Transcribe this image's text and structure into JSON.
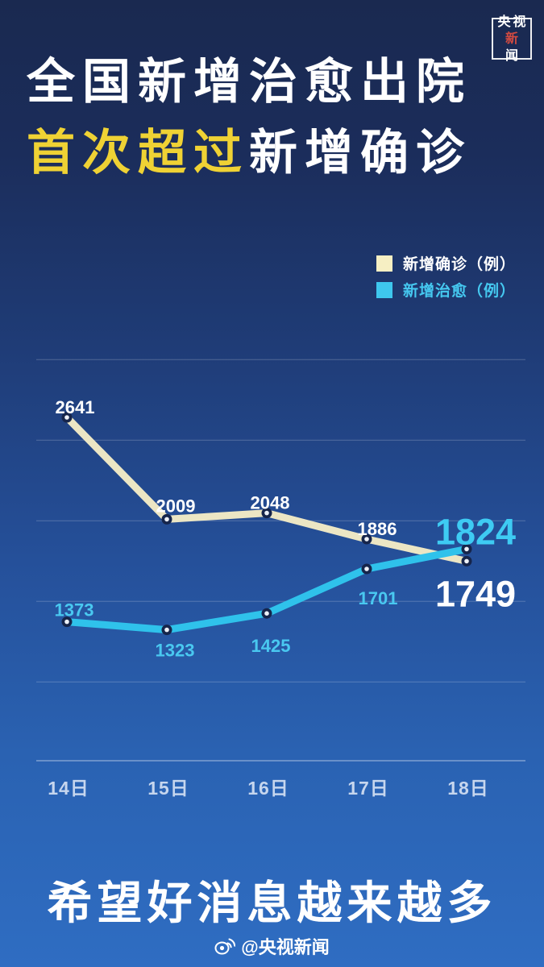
{
  "brand": {
    "logo_row1": "央视",
    "logo_row2_red": "新",
    "logo_row2_rest": "闻",
    "logo_red_color": "#d24a40"
  },
  "title": {
    "line1": "全国新增治愈出院",
    "line2_highlight": "首次超过",
    "line2_rest": "新增确诊",
    "highlight_color": "#efd234"
  },
  "legend": {
    "items": [
      {
        "label": "新增确诊（例）",
        "swatch_color": "#f6efc3",
        "text_color": "#ffffff"
      },
      {
        "label": "新增治愈（例）",
        "swatch_color": "#3ec7ee",
        "text_color": "#45c8f0"
      }
    ]
  },
  "chart_data": {
    "type": "line",
    "title": "全国新增治愈出院首次超过新增确诊",
    "categories": [
      "14日",
      "15日",
      "16日",
      "17日",
      "18日"
    ],
    "series": [
      {
        "name": "新增确诊（例）",
        "values": [
          2641,
          2009,
          2048,
          1886,
          1749
        ],
        "color": "#ece6c4",
        "label_color": "#ffffff",
        "final_label_color": "#ffffff"
      },
      {
        "name": "新增治愈（例）",
        "values": [
          1373,
          1323,
          1425,
          1701,
          1824
        ],
        "color": "#2fc2eb",
        "label_color": "#49c8f0",
        "final_label_color": "#3ecbf3"
      }
    ],
    "ylim": [
      1000,
      3000
    ],
    "gridline_values": [
      3000,
      2500,
      2000,
      1500,
      1000
    ],
    "grid": true,
    "legend_position": "top-right",
    "final_point_emphasized": true
  },
  "footer": {
    "headline": "希望好消息越来越多",
    "credit": "@央视新闻"
  },
  "colors": {
    "background_top": "#1a2950",
    "background_bottom": "#2f6dc2",
    "confirmed_line": "#ece6c4",
    "cured_line": "#2fc2eb",
    "title_highlight": "#efd234",
    "dot_ring": "#16254b"
  }
}
